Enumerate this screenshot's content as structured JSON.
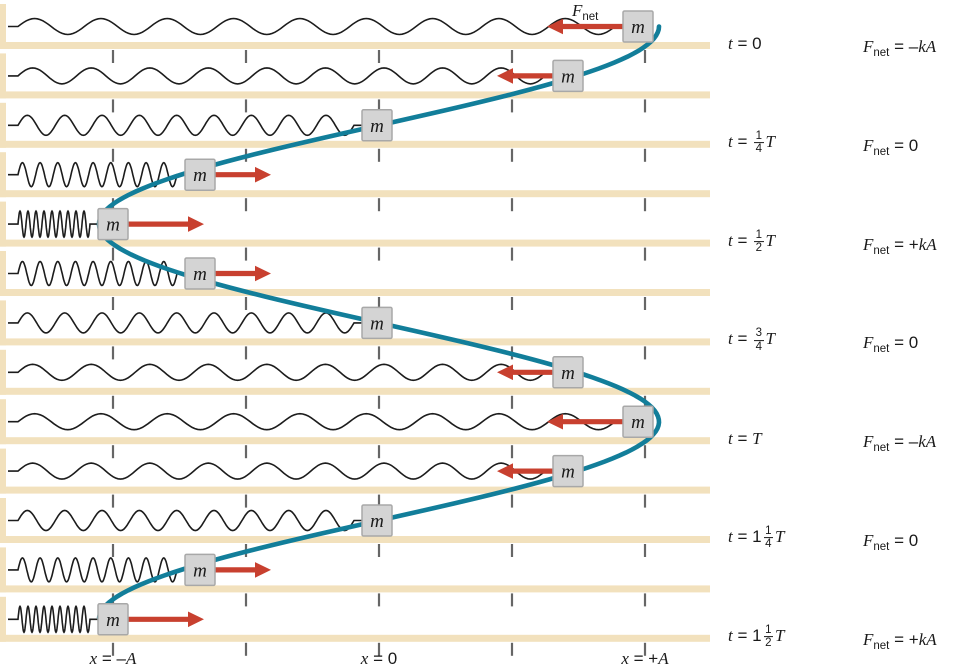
{
  "figure": {
    "description": "Mass on a horizontal spring in simple harmonic motion; successive snapshots in time with the position traced by a cosine curve",
    "mass_label": "m",
    "row_count": 13
  },
  "colors": {
    "background": "#ffffff",
    "floor": "#f2e1bd",
    "wall": "#f2e1bd",
    "spring": "#1c1c1c",
    "curve": "#127e9a",
    "arrow": "#c8402f",
    "mass_fill": "#d4d4d4",
    "mass_border": "#a8a8a8",
    "tick": "#666666",
    "text": "#1a1a1a"
  },
  "rows": [
    {
      "index": 0,
      "position_in_A": 1,
      "arrow": "left-long",
      "show_fnet_label": true
    },
    {
      "index": 1,
      "position_in_A": 0.71,
      "arrow": "left-short",
      "show_fnet_label": false
    },
    {
      "index": 2,
      "position_in_A": 0,
      "arrow": "none",
      "show_fnet_label": false
    },
    {
      "index": 3,
      "position_in_A": -0.71,
      "arrow": "right-short",
      "show_fnet_label": false
    },
    {
      "index": 4,
      "position_in_A": -1,
      "arrow": "right-long",
      "show_fnet_label": false
    },
    {
      "index": 5,
      "position_in_A": -0.71,
      "arrow": "right-short",
      "show_fnet_label": false
    },
    {
      "index": 6,
      "position_in_A": 0,
      "arrow": "none",
      "show_fnet_label": false
    },
    {
      "index": 7,
      "position_in_A": 0.71,
      "arrow": "left-short",
      "show_fnet_label": false
    },
    {
      "index": 8,
      "position_in_A": 1,
      "arrow": "left-long",
      "show_fnet_label": false
    },
    {
      "index": 9,
      "position_in_A": 0.71,
      "arrow": "left-short",
      "show_fnet_label": false
    },
    {
      "index": 10,
      "position_in_A": 0,
      "arrow": "none",
      "show_fnet_label": false
    },
    {
      "index": 11,
      "position_in_A": -0.71,
      "arrow": "right-short",
      "show_fnet_label": false
    },
    {
      "index": 12,
      "position_in_A": -1,
      "arrow": "right-long",
      "show_fnet_label": false
    }
  ],
  "fnet_annotation": {
    "parts": [
      {
        "t": "F",
        "i": true
      },
      {
        "t": "net",
        "sub": true
      }
    ]
  },
  "time_labels": [
    {
      "row": 0,
      "parts": [
        {
          "t": "t",
          "i": true
        },
        {
          "t": " = "
        },
        {
          "t": "0"
        }
      ]
    },
    {
      "row": 2,
      "parts": [
        {
          "t": "t",
          "i": true
        },
        {
          "t": " = "
        },
        {
          "frac": [
            "1",
            "4"
          ]
        },
        {
          "t": "T",
          "i": true
        }
      ]
    },
    {
      "row": 4,
      "parts": [
        {
          "t": "t",
          "i": true
        },
        {
          "t": " = "
        },
        {
          "frac": [
            "1",
            "2"
          ]
        },
        {
          "t": "T",
          "i": true
        }
      ]
    },
    {
      "row": 6,
      "parts": [
        {
          "t": "t",
          "i": true
        },
        {
          "t": " = "
        },
        {
          "frac": [
            "3",
            "4"
          ]
        },
        {
          "t": "T",
          "i": true
        }
      ]
    },
    {
      "row": 8,
      "parts": [
        {
          "t": "t",
          "i": true
        },
        {
          "t": " = "
        },
        {
          "t": "T",
          "i": true
        }
      ]
    },
    {
      "row": 10,
      "parts": [
        {
          "t": "t",
          "i": true
        },
        {
          "t": " = "
        },
        {
          "t": "1"
        },
        {
          "frac": [
            "1",
            "4"
          ]
        },
        {
          "t": "T",
          "i": true
        }
      ]
    },
    {
      "row": 12,
      "parts": [
        {
          "t": "t",
          "i": true
        },
        {
          "t": " = "
        },
        {
          "t": "1"
        },
        {
          "frac": [
            "1",
            "2"
          ]
        },
        {
          "t": "T",
          "i": true
        }
      ]
    }
  ],
  "force_labels": [
    {
      "row": 0,
      "parts": [
        {
          "t": "F",
          "i": true
        },
        {
          "t": "net",
          "sub": true
        },
        {
          "t": " = "
        },
        {
          "t": "–"
        },
        {
          "t": "kA",
          "i": true
        }
      ]
    },
    {
      "row": 2,
      "parts": [
        {
          "t": "F",
          "i": true
        },
        {
          "t": "net",
          "sub": true
        },
        {
          "t": " = "
        },
        {
          "t": "0"
        }
      ]
    },
    {
      "row": 4,
      "parts": [
        {
          "t": "F",
          "i": true
        },
        {
          "t": "net",
          "sub": true
        },
        {
          "t": " = "
        },
        {
          "t": "+"
        },
        {
          "t": "kA",
          "i": true
        }
      ]
    },
    {
      "row": 6,
      "parts": [
        {
          "t": "F",
          "i": true
        },
        {
          "t": "net",
          "sub": true
        },
        {
          "t": " = "
        },
        {
          "t": "0"
        }
      ]
    },
    {
      "row": 8,
      "parts": [
        {
          "t": "F",
          "i": true
        },
        {
          "t": "net",
          "sub": true
        },
        {
          "t": " = "
        },
        {
          "t": "–"
        },
        {
          "t": "kA",
          "i": true
        }
      ]
    },
    {
      "row": 10,
      "parts": [
        {
          "t": "F",
          "i": true
        },
        {
          "t": "net",
          "sub": true
        },
        {
          "t": " = "
        },
        {
          "t": "0"
        }
      ]
    },
    {
      "row": 12,
      "parts": [
        {
          "t": "F",
          "i": true
        },
        {
          "t": "net",
          "sub": true
        },
        {
          "t": " = "
        },
        {
          "t": "+"
        },
        {
          "t": "kA",
          "i": true
        }
      ]
    }
  ],
  "axis_labels": [
    {
      "anchor": "-A",
      "parts": [
        {
          "t": "x",
          "i": true
        },
        {
          "t": " = "
        },
        {
          "t": "–"
        },
        {
          "t": "A",
          "i": true
        }
      ]
    },
    {
      "anchor": "0",
      "parts": [
        {
          "t": "x",
          "i": true
        },
        {
          "t": " = "
        },
        {
          "t": "0"
        }
      ]
    },
    {
      "anchor": "+A",
      "parts": [
        {
          "t": "x",
          "i": true
        },
        {
          "t": " = "
        },
        {
          "t": "+"
        },
        {
          "t": "A",
          "i": true
        }
      ]
    }
  ]
}
